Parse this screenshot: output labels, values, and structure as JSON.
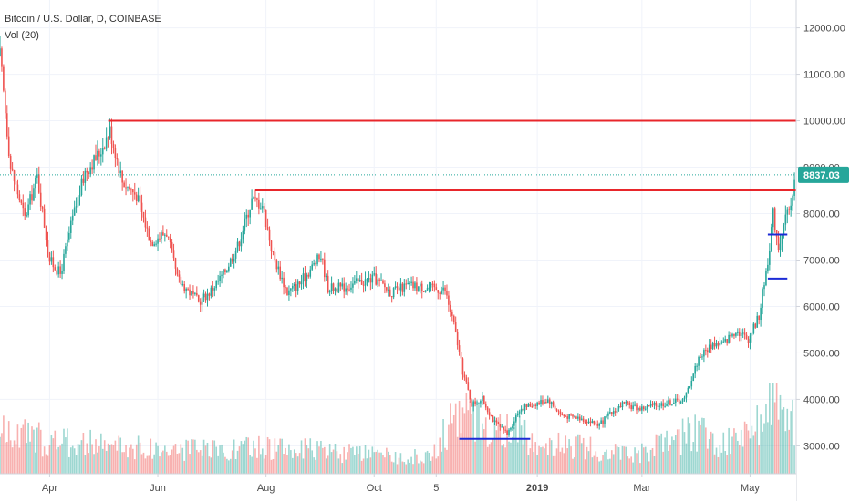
{
  "header": {
    "symbol_line": "Bitcoin / U.S. Dollar, D, COINBASE",
    "indicator_line": "Vol (20)"
  },
  "colors": {
    "up": "#26a69a",
    "down": "#ef5350",
    "resistance": "#e8262b",
    "support": "#1c2bd6",
    "grid": "#f0f3fa",
    "axis": "#d1d4dc"
  },
  "chart_data": {
    "type": "candlestick",
    "ylim": [
      2400,
      12600
    ],
    "y_ticks": [
      "12000.00",
      "11000.00",
      "10000.00",
      "9000.00",
      "8000.00",
      "7000.00",
      "6000.00",
      "5000.00",
      "4000.00",
      "3000.00"
    ],
    "y_tick_values": [
      12000,
      11000,
      10000,
      9000,
      8000,
      7000,
      6000,
      5000,
      4000,
      3000
    ],
    "x_range": [
      "2018-03-04",
      "2019-05-27"
    ],
    "x_ticks": [
      {
        "label": "Apr",
        "date": "2018-04-01",
        "bold": false
      },
      {
        "label": "Jun",
        "date": "2018-06-01",
        "bold": false
      },
      {
        "label": "Aug",
        "date": "2018-08-01",
        "bold": false
      },
      {
        "label": "Oct",
        "date": "2018-10-01",
        "bold": false
      },
      {
        "label": "5",
        "date": "2018-11-05",
        "bold": false
      },
      {
        "label": "2019",
        "date": "2019-01-01",
        "bold": true
      },
      {
        "label": "Mar",
        "date": "2019-03-01",
        "bold": false
      },
      {
        "label": "May",
        "date": "2019-05-01",
        "bold": false
      }
    ],
    "last_price": "8837.03",
    "last_price_value": 8837.03,
    "price_path": [
      [
        "2018-03-04",
        11400
      ],
      [
        "2018-03-10",
        9000
      ],
      [
        "2018-03-18",
        7900
      ],
      [
        "2018-03-25",
        8800
      ],
      [
        "2018-04-01",
        7000
      ],
      [
        "2018-04-07",
        6700
      ],
      [
        "2018-04-14",
        7900
      ],
      [
        "2018-04-21",
        8900
      ],
      [
        "2018-04-29",
        9300
      ],
      [
        "2018-05-05",
        9800
      ],
      [
        "2018-05-12",
        8700
      ],
      [
        "2018-05-20",
        8400
      ],
      [
        "2018-05-28",
        7400
      ],
      [
        "2018-06-06",
        7600
      ],
      [
        "2018-06-12",
        6600
      ],
      [
        "2018-06-24",
        6100
      ],
      [
        "2018-06-30",
        6300
      ],
      [
        "2018-07-08",
        6700
      ],
      [
        "2018-07-16",
        7300
      ],
      [
        "2018-07-24",
        8300
      ],
      [
        "2018-07-30",
        8200
      ],
      [
        "2018-08-05",
        7100
      ],
      [
        "2018-08-13",
        6300
      ],
      [
        "2018-08-20",
        6500
      ],
      [
        "2018-09-01",
        7100
      ],
      [
        "2018-09-05",
        6400
      ],
      [
        "2018-09-13",
        6400
      ],
      [
        "2018-09-20",
        6500
      ],
      [
        "2018-10-01",
        6600
      ],
      [
        "2018-10-11",
        6300
      ],
      [
        "2018-10-20",
        6450
      ],
      [
        "2018-11-01",
        6400
      ],
      [
        "2018-11-10",
        6350
      ],
      [
        "2018-11-15",
        5600
      ],
      [
        "2018-11-20",
        4600
      ],
      [
        "2018-11-25",
        3900
      ],
      [
        "2018-12-01",
        4000
      ],
      [
        "2018-12-08",
        3500
      ],
      [
        "2018-12-15",
        3250
      ],
      [
        "2018-12-22",
        3800
      ],
      [
        "2018-12-30",
        3900
      ],
      [
        "2019-01-07",
        4000
      ],
      [
        "2019-01-15",
        3650
      ],
      [
        "2019-01-25",
        3600
      ],
      [
        "2019-02-05",
        3450
      ],
      [
        "2019-02-10",
        3650
      ],
      [
        "2019-02-18",
        3900
      ],
      [
        "2019-02-28",
        3800
      ],
      [
        "2019-03-12",
        3900
      ],
      [
        "2019-03-25",
        4000
      ],
      [
        "2019-04-02",
        4900
      ],
      [
        "2019-04-10",
        5200
      ],
      [
        "2019-04-16",
        5200
      ],
      [
        "2019-04-23",
        5500
      ],
      [
        "2019-04-30",
        5300
      ],
      [
        "2019-05-06",
        5800
      ],
      [
        "2019-05-11",
        7000
      ],
      [
        "2019-05-14",
        8000
      ],
      [
        "2019-05-17",
        7300
      ],
      [
        "2019-05-21",
        7900
      ],
      [
        "2019-05-24",
        8100
      ],
      [
        "2019-05-26",
        8837
      ]
    ],
    "volume_path": [
      [
        "2018-03-04",
        0.5
      ],
      [
        "2018-04-01",
        0.4
      ],
      [
        "2018-05-01",
        0.35
      ],
      [
        "2018-06-01",
        0.3
      ],
      [
        "2018-07-01",
        0.28
      ],
      [
        "2018-08-01",
        0.32
      ],
      [
        "2018-09-01",
        0.28
      ],
      [
        "2018-10-01",
        0.22
      ],
      [
        "2018-11-01",
        0.2
      ],
      [
        "2018-11-18",
        0.75
      ],
      [
        "2018-12-05",
        0.6
      ],
      [
        "2019-01-01",
        0.4
      ],
      [
        "2019-02-01",
        0.3
      ],
      [
        "2019-03-01",
        0.25
      ],
      [
        "2019-04-02",
        0.55
      ],
      [
        "2019-04-15",
        0.35
      ],
      [
        "2019-05-01",
        0.45
      ],
      [
        "2019-05-14",
        0.85
      ],
      [
        "2019-05-26",
        0.6
      ]
    ],
    "horizontal_lines": [
      {
        "name": "resistance-10000",
        "color": "#e8262b",
        "price": 10000,
        "x_start": "2018-05-04",
        "x_end": "2019-05-27"
      },
      {
        "name": "resistance-8500",
        "color": "#e8262b",
        "price": 8500,
        "x_start": "2018-07-26",
        "x_end": "2019-05-27"
      },
      {
        "name": "support-3150",
        "color": "#1c2bd6",
        "price": 3150,
        "x_start": "2018-11-18",
        "x_end": "2018-12-28"
      },
      {
        "name": "support-7550",
        "color": "#1c2bd6",
        "price": 7550,
        "x_start": "2019-05-11",
        "x_end": "2019-05-22"
      },
      {
        "name": "support-6600",
        "color": "#1c2bd6",
        "price": 6600,
        "x_start": "2019-05-11",
        "x_end": "2019-05-22"
      }
    ]
  }
}
